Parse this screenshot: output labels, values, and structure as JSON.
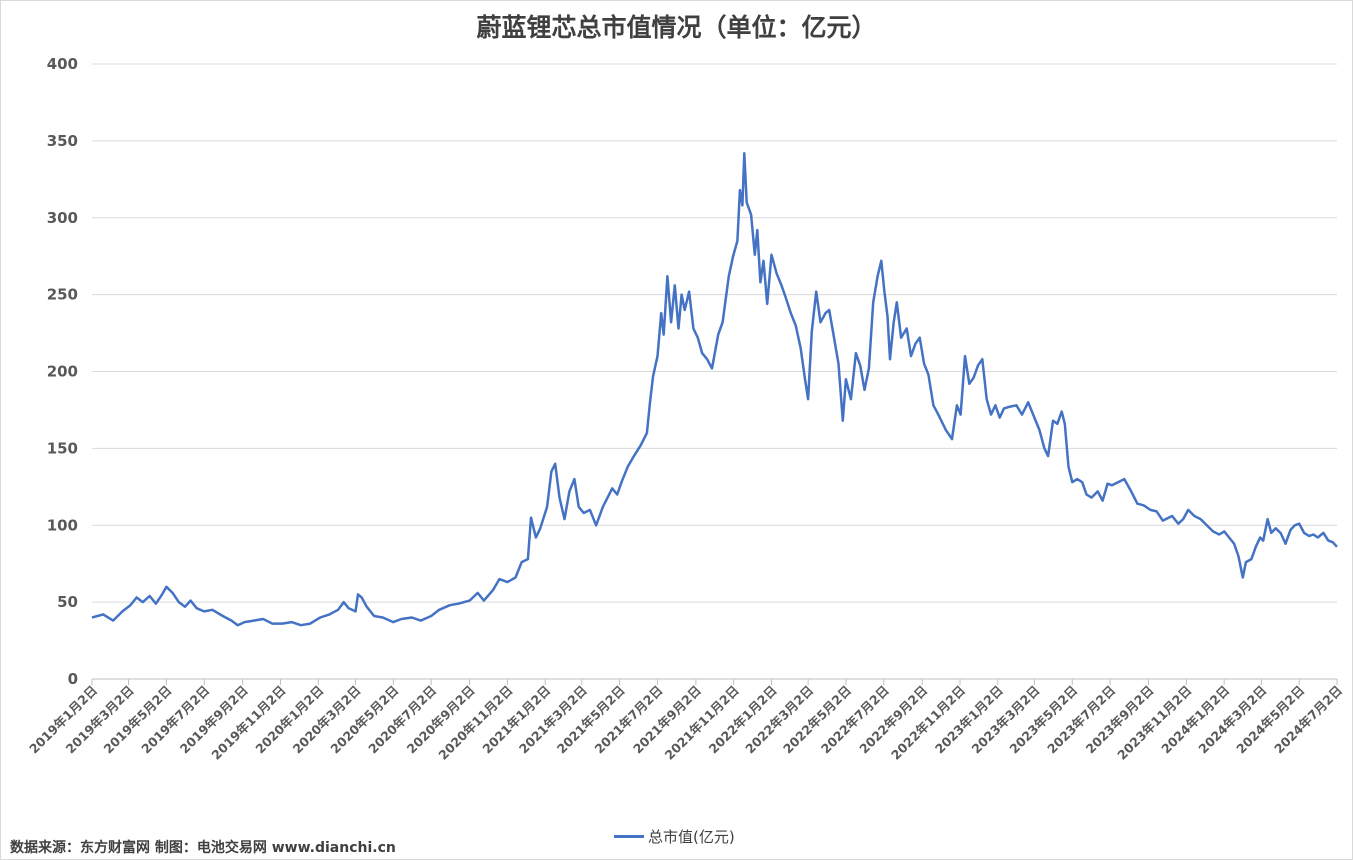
{
  "chart_data": {
    "type": "line",
    "title": "蔚蓝锂芯总市值情况（单位：亿元）",
    "ylim": [
      0,
      400
    ],
    "yticks": [
      0,
      50,
      100,
      150,
      200,
      250,
      300,
      350,
      400
    ],
    "grid": true,
    "legend_position": "bottom",
    "x_tick_labels": [
      "2019年1月2日",
      "2019年3月2日",
      "2019年5月2日",
      "2019年7月2日",
      "2019年9月2日",
      "2019年11月2日",
      "2020年1月2日",
      "2020年3月2日",
      "2020年5月2日",
      "2020年7月2日",
      "2020年9月2日",
      "2020年11月2日",
      "2021年1月2日",
      "2021年3月2日",
      "2021年5月2日",
      "2021年7月2日",
      "2021年9月2日",
      "2021年11月2日",
      "2022年1月2日",
      "2022年3月2日",
      "2022年5月2日",
      "2022年7月2日",
      "2022年9月2日",
      "2022年11月2日",
      "2023年1月2日",
      "2023年3月2日",
      "2023年5月2日",
      "2023年7月2日",
      "2023年9月2日",
      "2023年11月2日",
      "2024年1月2日",
      "2024年3月2日",
      "2024年5月2日",
      "2024年7月2日"
    ],
    "series": [
      {
        "name": "总市值(亿元)",
        "color": "#4472c4",
        "points": [
          [
            "2019-01-02",
            40
          ],
          [
            "2019-01-20",
            42
          ],
          [
            "2019-02-05",
            38
          ],
          [
            "2019-02-20",
            44
          ],
          [
            "2019-03-05",
            48
          ],
          [
            "2019-03-15",
            53
          ],
          [
            "2019-03-25",
            50
          ],
          [
            "2019-04-05",
            54
          ],
          [
            "2019-04-15",
            49
          ],
          [
            "2019-04-25",
            55
          ],
          [
            "2019-05-02",
            60
          ],
          [
            "2019-05-12",
            56
          ],
          [
            "2019-05-22",
            50
          ],
          [
            "2019-06-01",
            47
          ],
          [
            "2019-06-10",
            51
          ],
          [
            "2019-06-20",
            46
          ],
          [
            "2019-07-02",
            44
          ],
          [
            "2019-07-15",
            45
          ],
          [
            "2019-08-01",
            41
          ],
          [
            "2019-08-15",
            38
          ],
          [
            "2019-08-25",
            35
          ],
          [
            "2019-09-05",
            37
          ],
          [
            "2019-09-20",
            38
          ],
          [
            "2019-10-05",
            39
          ],
          [
            "2019-10-20",
            36
          ],
          [
            "2019-11-05",
            36
          ],
          [
            "2019-11-20",
            37
          ],
          [
            "2019-12-05",
            35
          ],
          [
            "2019-12-20",
            36
          ],
          [
            "2020-01-05",
            40
          ],
          [
            "2020-01-20",
            42
          ],
          [
            "2020-02-03",
            45
          ],
          [
            "2020-02-12",
            50
          ],
          [
            "2020-02-20",
            46
          ],
          [
            "2020-03-02",
            44
          ],
          [
            "2020-03-06",
            55
          ],
          [
            "2020-03-12",
            53
          ],
          [
            "2020-03-20",
            47
          ],
          [
            "2020-04-01",
            41
          ],
          [
            "2020-04-15",
            40
          ],
          [
            "2020-05-02",
            37
          ],
          [
            "2020-05-15",
            39
          ],
          [
            "2020-06-01",
            40
          ],
          [
            "2020-06-15",
            38
          ],
          [
            "2020-07-02",
            41
          ],
          [
            "2020-07-15",
            45
          ],
          [
            "2020-08-01",
            48
          ],
          [
            "2020-08-15",
            49
          ],
          [
            "2020-09-02",
            51
          ],
          [
            "2020-09-15",
            56
          ],
          [
            "2020-09-25",
            51
          ],
          [
            "2020-10-10",
            58
          ],
          [
            "2020-10-20",
            65
          ],
          [
            "2020-11-02",
            63
          ],
          [
            "2020-11-15",
            66
          ],
          [
            "2020-11-25",
            76
          ],
          [
            "2020-12-05",
            78
          ],
          [
            "2020-12-10",
            105
          ],
          [
            "2020-12-18",
            92
          ],
          [
            "2020-12-25",
            98
          ],
          [
            "2021-01-05",
            112
          ],
          [
            "2021-01-12",
            135
          ],
          [
            "2021-01-18",
            140
          ],
          [
            "2021-01-25",
            118
          ],
          [
            "2021-02-02",
            104
          ],
          [
            "2021-02-10",
            122
          ],
          [
            "2021-02-18",
            130
          ],
          [
            "2021-02-25",
            112
          ],
          [
            "2021-03-05",
            108
          ],
          [
            "2021-03-15",
            110
          ],
          [
            "2021-03-25",
            100
          ],
          [
            "2021-04-05",
            112
          ],
          [
            "2021-04-20",
            124
          ],
          [
            "2021-04-28",
            120
          ],
          [
            "2021-05-05",
            128
          ],
          [
            "2021-05-15",
            138
          ],
          [
            "2021-05-25",
            145
          ],
          [
            "2021-06-05",
            152
          ],
          [
            "2021-06-15",
            160
          ],
          [
            "2021-06-20",
            180
          ],
          [
            "2021-06-25",
            197
          ],
          [
            "2021-07-02",
            210
          ],
          [
            "2021-07-08",
            238
          ],
          [
            "2021-07-12",
            224
          ],
          [
            "2021-07-18",
            262
          ],
          [
            "2021-07-24",
            232
          ],
          [
            "2021-07-30",
            256
          ],
          [
            "2021-08-05",
            228
          ],
          [
            "2021-08-10",
            250
          ],
          [
            "2021-08-15",
            240
          ],
          [
            "2021-08-22",
            252
          ],
          [
            "2021-08-29",
            228
          ],
          [
            "2021-09-05",
            222
          ],
          [
            "2021-09-12",
            212
          ],
          [
            "2021-09-20",
            208
          ],
          [
            "2021-09-28",
            202
          ],
          [
            "2021-10-08",
            224
          ],
          [
            "2021-10-15",
            232
          ],
          [
            "2021-10-25",
            262
          ],
          [
            "2021-11-01",
            275
          ],
          [
            "2021-11-08",
            285
          ],
          [
            "2021-11-12",
            318
          ],
          [
            "2021-11-16",
            308
          ],
          [
            "2021-11-19",
            342
          ],
          [
            "2021-11-23",
            310
          ],
          [
            "2021-11-30",
            302
          ],
          [
            "2021-12-06",
            276
          ],
          [
            "2021-12-10",
            292
          ],
          [
            "2021-12-15",
            258
          ],
          [
            "2021-12-20",
            272
          ],
          [
            "2021-12-26",
            244
          ],
          [
            "2022-01-02",
            276
          ],
          [
            "2022-01-10",
            264
          ],
          [
            "2022-01-18",
            256
          ],
          [
            "2022-01-25",
            248
          ],
          [
            "2022-02-02",
            238
          ],
          [
            "2022-02-10",
            230
          ],
          [
            "2022-02-18",
            215
          ],
          [
            "2022-02-25",
            195
          ],
          [
            "2022-03-02",
            182
          ],
          [
            "2022-03-08",
            226
          ],
          [
            "2022-03-15",
            252
          ],
          [
            "2022-03-22",
            232
          ],
          [
            "2022-03-30",
            238
          ],
          [
            "2022-04-05",
            240
          ],
          [
            "2022-04-12",
            224
          ],
          [
            "2022-04-20",
            205
          ],
          [
            "2022-04-27",
            168
          ],
          [
            "2022-05-02",
            195
          ],
          [
            "2022-05-10",
            182
          ],
          [
            "2022-05-18",
            212
          ],
          [
            "2022-05-25",
            204
          ],
          [
            "2022-06-01",
            188
          ],
          [
            "2022-06-08",
            202
          ],
          [
            "2022-06-15",
            245
          ],
          [
            "2022-06-22",
            262
          ],
          [
            "2022-06-28",
            272
          ],
          [
            "2022-07-03",
            252
          ],
          [
            "2022-07-08",
            236
          ],
          [
            "2022-07-12",
            208
          ],
          [
            "2022-07-18",
            232
          ],
          [
            "2022-07-23",
            245
          ],
          [
            "2022-07-30",
            222
          ],
          [
            "2022-08-08",
            228
          ],
          [
            "2022-08-15",
            210
          ],
          [
            "2022-08-22",
            218
          ],
          [
            "2022-08-29",
            222
          ],
          [
            "2022-09-05",
            205
          ],
          [
            "2022-09-12",
            198
          ],
          [
            "2022-09-20",
            178
          ],
          [
            "2022-09-28",
            172
          ],
          [
            "2022-10-10",
            162
          ],
          [
            "2022-10-20",
            156
          ],
          [
            "2022-10-28",
            178
          ],
          [
            "2022-11-03",
            172
          ],
          [
            "2022-11-10",
            210
          ],
          [
            "2022-11-17",
            192
          ],
          [
            "2022-11-24",
            196
          ],
          [
            "2022-12-01",
            204
          ],
          [
            "2022-12-08",
            208
          ],
          [
            "2022-12-15",
            182
          ],
          [
            "2022-12-22",
            172
          ],
          [
            "2022-12-29",
            178
          ],
          [
            "2023-01-05",
            170
          ],
          [
            "2023-01-12",
            176
          ],
          [
            "2023-01-20",
            177
          ],
          [
            "2023-02-01",
            178
          ],
          [
            "2023-02-10",
            172
          ],
          [
            "2023-02-20",
            180
          ],
          [
            "2023-03-02",
            170
          ],
          [
            "2023-03-10",
            162
          ],
          [
            "2023-03-18",
            150
          ],
          [
            "2023-03-24",
            145
          ],
          [
            "2023-04-01",
            168
          ],
          [
            "2023-04-08",
            166
          ],
          [
            "2023-04-15",
            174
          ],
          [
            "2023-04-20",
            166
          ],
          [
            "2023-04-26",
            138
          ],
          [
            "2023-05-02",
            128
          ],
          [
            "2023-05-10",
            130
          ],
          [
            "2023-05-18",
            128
          ],
          [
            "2023-05-25",
            120
          ],
          [
            "2023-06-02",
            118
          ],
          [
            "2023-06-12",
            122
          ],
          [
            "2023-06-20",
            116
          ],
          [
            "2023-06-28",
            127
          ],
          [
            "2023-07-05",
            126
          ],
          [
            "2023-07-15",
            128
          ],
          [
            "2023-07-25",
            130
          ],
          [
            "2023-08-05",
            122
          ],
          [
            "2023-08-15",
            114
          ],
          [
            "2023-08-25",
            113
          ],
          [
            "2023-09-05",
            110
          ],
          [
            "2023-09-15",
            109
          ],
          [
            "2023-09-25",
            103
          ],
          [
            "2023-10-10",
            106
          ],
          [
            "2023-10-20",
            101
          ],
          [
            "2023-10-28",
            104
          ],
          [
            "2023-11-05",
            110
          ],
          [
            "2023-11-15",
            106
          ],
          [
            "2023-11-25",
            104
          ],
          [
            "2023-12-05",
            100
          ],
          [
            "2023-12-15",
            96
          ],
          [
            "2023-12-25",
            94
          ],
          [
            "2024-01-02",
            96
          ],
          [
            "2024-01-10",
            92
          ],
          [
            "2024-01-18",
            88
          ],
          [
            "2024-01-25",
            80
          ],
          [
            "2024-02-01",
            66
          ],
          [
            "2024-02-06",
            76
          ],
          [
            "2024-02-15",
            78
          ],
          [
            "2024-02-22",
            86
          ],
          [
            "2024-02-29",
            92
          ],
          [
            "2024-03-05",
            90
          ],
          [
            "2024-03-12",
            104
          ],
          [
            "2024-03-18",
            95
          ],
          [
            "2024-03-25",
            98
          ],
          [
            "2024-04-02",
            95
          ],
          [
            "2024-04-10",
            88
          ],
          [
            "2024-04-18",
            97
          ],
          [
            "2024-04-25",
            100
          ],
          [
            "2024-05-02",
            101
          ],
          [
            "2024-05-10",
            95
          ],
          [
            "2024-05-18",
            93
          ],
          [
            "2024-05-25",
            94
          ],
          [
            "2024-06-01",
            92
          ],
          [
            "2024-06-10",
            95
          ],
          [
            "2024-06-18",
            90
          ],
          [
            "2024-06-25",
            89
          ],
          [
            "2024-07-02",
            86
          ]
        ]
      }
    ]
  },
  "footer": {
    "source": "数据来源：东方财富网 制图：电池交易网 www.dianchi.cn"
  }
}
